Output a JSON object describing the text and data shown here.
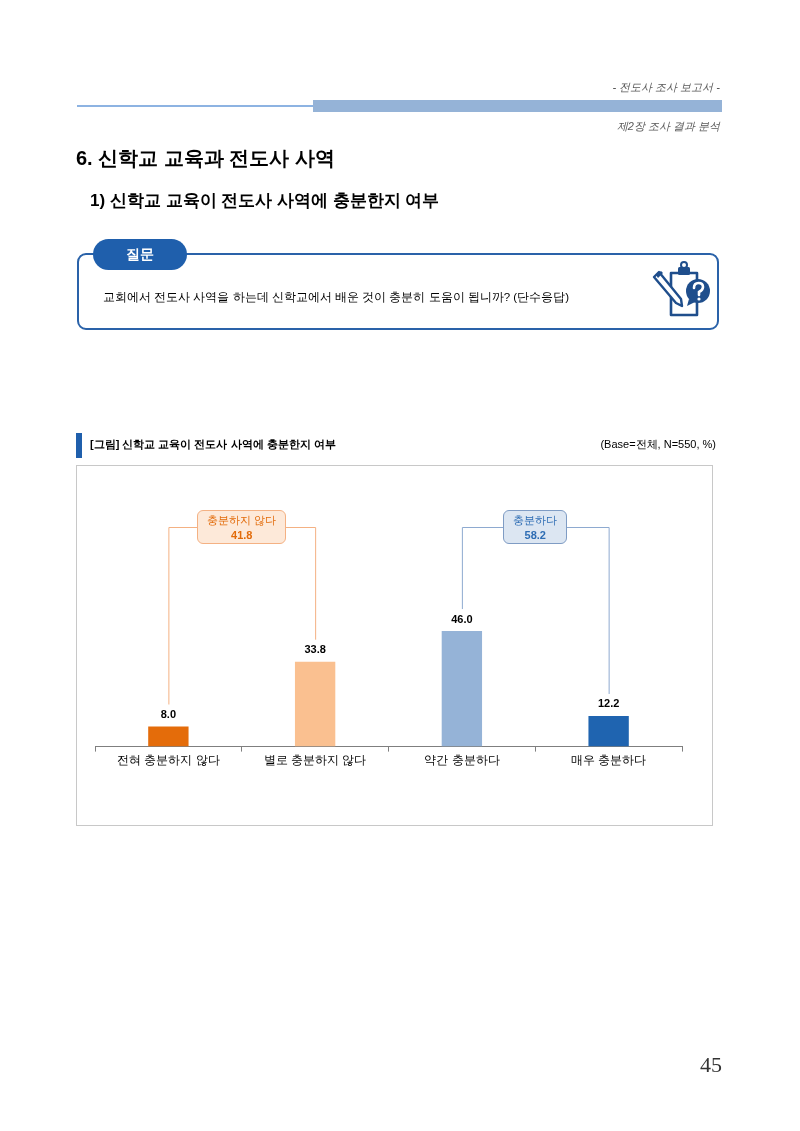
{
  "chart_data": {
    "type": "bar",
    "title": "[그림] 신학교 교육이 전도사 사역에 충분한지 여부",
    "categories": [
      "전혀 충분하지 않다",
      "별로 충분하지 않다",
      "약간 충분하다",
      "매우 충분하다"
    ],
    "values": [
      8.0,
      33.8,
      46.0,
      12.2
    ],
    "colors": [
      "#e46c0a",
      "#fac090",
      "#95b3d7",
      "#1f64b0"
    ],
    "value_labels": [
      "8.0",
      "33.8",
      "46.0",
      "12.2"
    ],
    "grid": false,
    "legend": false,
    "tick_labels": "x",
    "annotations": [
      "- 전도사 조사 보고서 -",
      "제2장 조사 결과 분석",
      "6. 신학교 교육과 전도사 사역",
      "1) 신학교 교육이 전도사 사역에 충분한지 여부",
      "질문",
      "교회에서 전도사 사역을 하는데 신학교에서 배운 것이 충분히 도움이 됩니까? (단수응답)",
      "(Base=전체, N=550, %)",
      "충분하지 않다",
      "41.8",
      "충분하다",
      "58.2",
      "45"
    ]
  }
}
